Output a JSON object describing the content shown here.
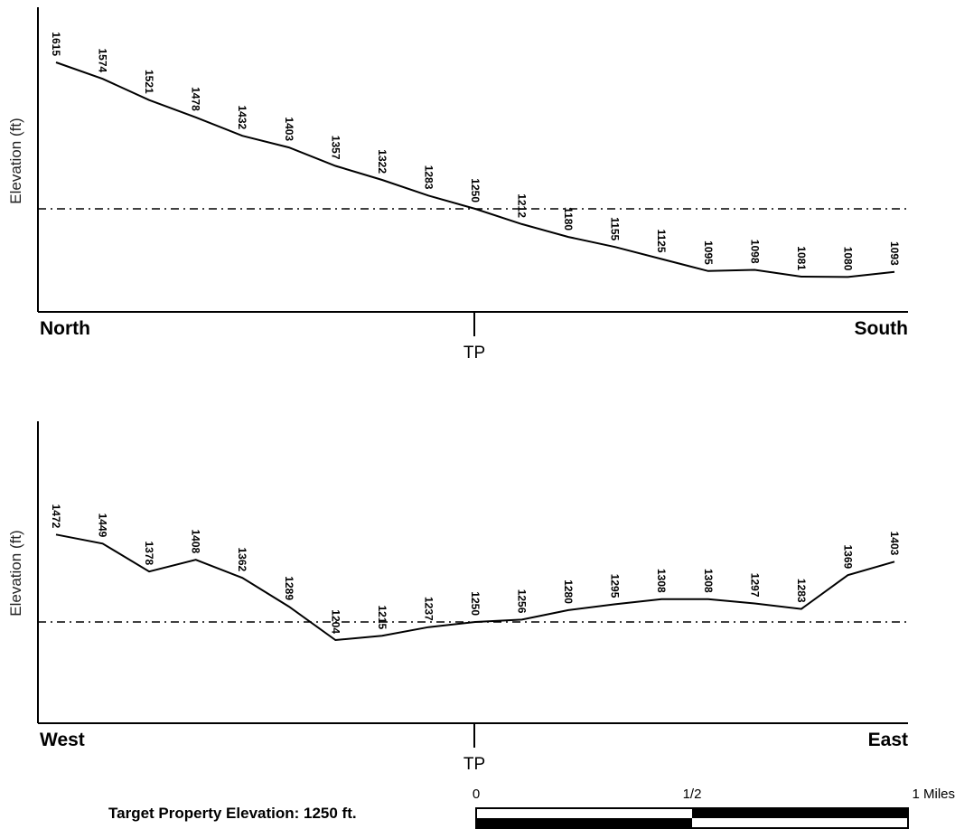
{
  "target_property": {
    "label": "Target Property Elevation: 1250 ft."
  },
  "scale_bar": {
    "labels": [
      "0",
      "1/2",
      "1 Miles"
    ]
  },
  "chart_data": [
    {
      "type": "line",
      "ylabel": "Elevation (ft)",
      "start_label": "North",
      "end_label": "South",
      "center_label": "TP",
      "reference_value": 1250,
      "ylim": [
        1000,
        1700
      ],
      "values": [
        1615,
        1574,
        1521,
        1478,
        1432,
        1403,
        1357,
        1322,
        1283,
        1250,
        1212,
        1180,
        1155,
        1125,
        1095,
        1098,
        1081,
        1080,
        1093
      ]
    },
    {
      "type": "line",
      "ylabel": "Elevation (ft)",
      "start_label": "West",
      "end_label": "East",
      "center_label": "TP",
      "reference_value": 1250,
      "ylim": [
        1000,
        1700
      ],
      "values": [
        1472,
        1449,
        1378,
        1408,
        1362,
        1289,
        1204,
        1215,
        1237,
        1250,
        1256,
        1280,
        1295,
        1308,
        1308,
        1297,
        1283,
        1369,
        1403
      ]
    }
  ]
}
